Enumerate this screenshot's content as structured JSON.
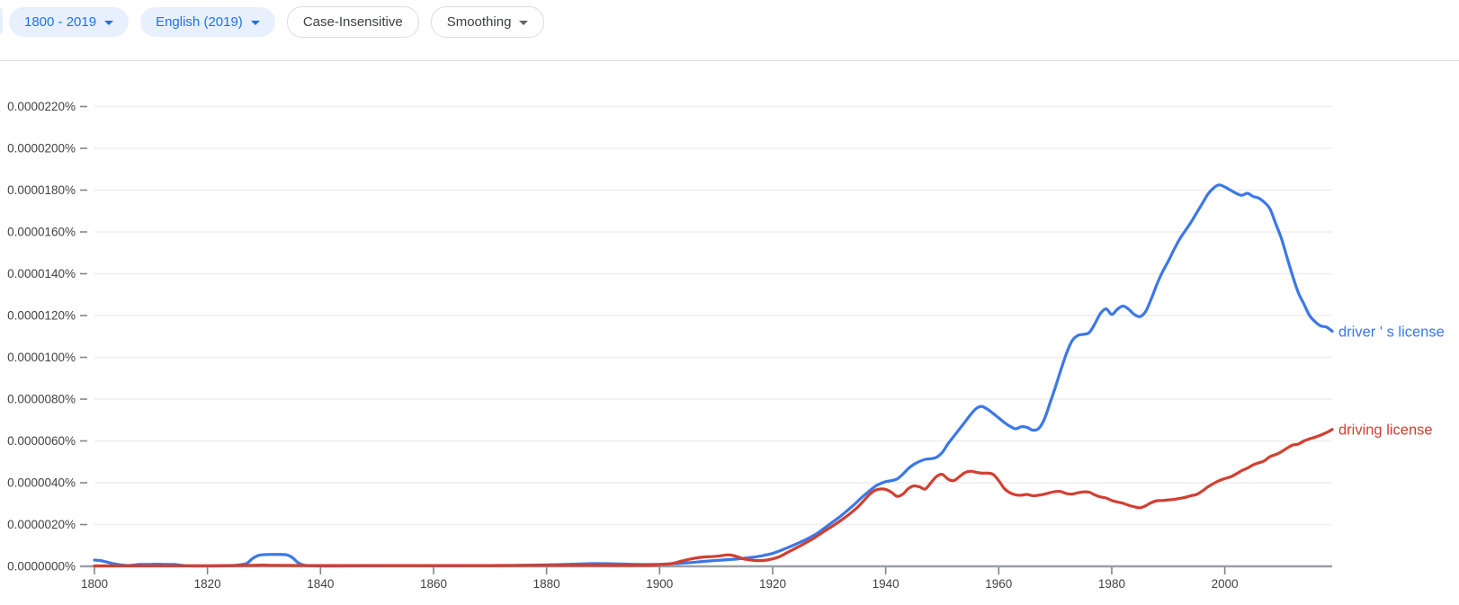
{
  "toolbar": {
    "chips": [
      {
        "label": "1800 - 2019",
        "style": "filled",
        "has_caret": true
      },
      {
        "label": "English (2019)",
        "style": "filled",
        "has_caret": true
      },
      {
        "label": "Case-Insensitive",
        "style": "outline",
        "has_caret": false
      },
      {
        "label": "Smoothing",
        "style": "outline",
        "has_caret": true
      }
    ]
  },
  "chart_data": {
    "type": "line",
    "title": "",
    "xlabel": "",
    "ylabel": "",
    "grid": "horizontal",
    "legend_position": "line-end-labels",
    "xlim": [
      1800,
      2019
    ],
    "x_ticks": [
      1800,
      1820,
      1840,
      1860,
      1880,
      1900,
      1920,
      1940,
      1960,
      1980,
      2000
    ],
    "y_unit": "percent",
    "points_unit": "1e-6 percent",
    "ylim_points_unit": [
      0,
      23.2
    ],
    "y_ticks": [
      {
        "value": 0,
        "label": "0.0000000%"
      },
      {
        "value": 2,
        "label": "0.0000020%"
      },
      {
        "value": 4,
        "label": "0.0000040%"
      },
      {
        "value": 6,
        "label": "0.0000060%"
      },
      {
        "value": 8,
        "label": "0.0000080%"
      },
      {
        "value": 10,
        "label": "0.0000100%"
      },
      {
        "value": 12,
        "label": "0.0000120%"
      },
      {
        "value": 14,
        "label": "0.0000140%"
      },
      {
        "value": 16,
        "label": "0.0000160%"
      },
      {
        "value": 18,
        "label": "0.0000180%"
      },
      {
        "value": 20,
        "label": "0.0000200%"
      },
      {
        "value": 22,
        "label": "0.0000220%"
      }
    ],
    "series": [
      {
        "name": "driver ' s license",
        "color": "#3b78e8",
        "points": [
          [
            1800,
            0.3
          ],
          [
            1801,
            0.28
          ],
          [
            1802,
            0.22
          ],
          [
            1803,
            0.15
          ],
          [
            1804,
            0.1
          ],
          [
            1805,
            0.06
          ],
          [
            1806,
            0.04
          ],
          [
            1807,
            0.06
          ],
          [
            1808,
            0.09
          ],
          [
            1810,
            0.1
          ],
          [
            1812,
            0.1
          ],
          [
            1814,
            0.09
          ],
          [
            1815,
            0.06
          ],
          [
            1816,
            0.03
          ],
          [
            1818,
            0.02
          ],
          [
            1820,
            0.02
          ],
          [
            1822,
            0.02
          ],
          [
            1824,
            0.03
          ],
          [
            1826,
            0.08
          ],
          [
            1827,
            0.15
          ],
          [
            1828,
            0.38
          ],
          [
            1829,
            0.52
          ],
          [
            1830,
            0.56
          ],
          [
            1832,
            0.57
          ],
          [
            1834,
            0.55
          ],
          [
            1835,
            0.42
          ],
          [
            1836,
            0.18
          ],
          [
            1837,
            0.06
          ],
          [
            1838,
            0.03
          ],
          [
            1840,
            0.02
          ],
          [
            1845,
            0.02
          ],
          [
            1850,
            0.03
          ],
          [
            1855,
            0.04
          ],
          [
            1860,
            0.03
          ],
          [
            1865,
            0.03
          ],
          [
            1870,
            0.04
          ],
          [
            1875,
            0.05
          ],
          [
            1880,
            0.07
          ],
          [
            1884,
            0.1
          ],
          [
            1888,
            0.13
          ],
          [
            1890,
            0.13
          ],
          [
            1893,
            0.11
          ],
          [
            1896,
            0.09
          ],
          [
            1899,
            0.09
          ],
          [
            1902,
            0.12
          ],
          [
            1905,
            0.17
          ],
          [
            1908,
            0.24
          ],
          [
            1911,
            0.3
          ],
          [
            1914,
            0.36
          ],
          [
            1916,
            0.42
          ],
          [
            1918,
            0.5
          ],
          [
            1920,
            0.62
          ],
          [
            1922,
            0.82
          ],
          [
            1924,
            1.05
          ],
          [
            1926,
            1.3
          ],
          [
            1928,
            1.6
          ],
          [
            1930,
            2.0
          ],
          [
            1932,
            2.4
          ],
          [
            1934,
            2.85
          ],
          [
            1936,
            3.35
          ],
          [
            1938,
            3.8
          ],
          [
            1939,
            3.95
          ],
          [
            1940,
            4.05
          ],
          [
            1941,
            4.1
          ],
          [
            1942,
            4.18
          ],
          [
            1943,
            4.4
          ],
          [
            1944,
            4.68
          ],
          [
            1945,
            4.88
          ],
          [
            1946,
            5.02
          ],
          [
            1947,
            5.12
          ],
          [
            1948,
            5.15
          ],
          [
            1949,
            5.22
          ],
          [
            1950,
            5.45
          ],
          [
            1951,
            5.85
          ],
          [
            1952,
            6.2
          ],
          [
            1953,
            6.55
          ],
          [
            1954,
            6.9
          ],
          [
            1955,
            7.25
          ],
          [
            1956,
            7.55
          ],
          [
            1957,
            7.65
          ],
          [
            1958,
            7.52
          ],
          [
            1959,
            7.32
          ],
          [
            1960,
            7.1
          ],
          [
            1961,
            6.88
          ],
          [
            1962,
            6.7
          ],
          [
            1963,
            6.58
          ],
          [
            1964,
            6.68
          ],
          [
            1965,
            6.65
          ],
          [
            1966,
            6.52
          ],
          [
            1967,
            6.58
          ],
          [
            1968,
            7.0
          ],
          [
            1969,
            7.75
          ],
          [
            1970,
            8.55
          ],
          [
            1971,
            9.4
          ],
          [
            1972,
            10.2
          ],
          [
            1973,
            10.8
          ],
          [
            1974,
            11.05
          ],
          [
            1975,
            11.1
          ],
          [
            1976,
            11.18
          ],
          [
            1977,
            11.6
          ],
          [
            1978,
            12.1
          ],
          [
            1979,
            12.32
          ],
          [
            1980,
            12.05
          ],
          [
            1981,
            12.3
          ],
          [
            1982,
            12.45
          ],
          [
            1983,
            12.3
          ],
          [
            1984,
            12.05
          ],
          [
            1985,
            11.95
          ],
          [
            1986,
            12.2
          ],
          [
            1987,
            12.8
          ],
          [
            1988,
            13.5
          ],
          [
            1989,
            14.1
          ],
          [
            1990,
            14.6
          ],
          [
            1991,
            15.15
          ],
          [
            1992,
            15.65
          ],
          [
            1993,
            16.05
          ],
          [
            1994,
            16.45
          ],
          [
            1995,
            16.9
          ],
          [
            1996,
            17.35
          ],
          [
            1997,
            17.8
          ],
          [
            1998,
            18.1
          ],
          [
            1999,
            18.25
          ],
          [
            2000,
            18.15
          ],
          [
            2001,
            18.0
          ],
          [
            2002,
            17.85
          ],
          [
            2003,
            17.75
          ],
          [
            2004,
            17.85
          ],
          [
            2005,
            17.7
          ],
          [
            2006,
            17.62
          ],
          [
            2007,
            17.42
          ],
          [
            2008,
            17.1
          ],
          [
            2009,
            16.4
          ],
          [
            2010,
            15.7
          ],
          [
            2011,
            14.8
          ],
          [
            2012,
            13.9
          ],
          [
            2013,
            13.1
          ],
          [
            2014,
            12.55
          ],
          [
            2015,
            12.0
          ],
          [
            2016,
            11.7
          ],
          [
            2017,
            11.5
          ],
          [
            2018,
            11.45
          ],
          [
            2019,
            11.25
          ]
        ]
      },
      {
        "name": "driving license",
        "color": "#d23f31",
        "points": [
          [
            1800,
            0.02
          ],
          [
            1810,
            0.03
          ],
          [
            1820,
            0.03
          ],
          [
            1828,
            0.05
          ],
          [
            1830,
            0.06
          ],
          [
            1832,
            0.05
          ],
          [
            1840,
            0.04
          ],
          [
            1850,
            0.04
          ],
          [
            1860,
            0.04
          ],
          [
            1870,
            0.04
          ],
          [
            1880,
            0.05
          ],
          [
            1890,
            0.05
          ],
          [
            1896,
            0.05
          ],
          [
            1900,
            0.08
          ],
          [
            1902,
            0.13
          ],
          [
            1904,
            0.26
          ],
          [
            1906,
            0.38
          ],
          [
            1908,
            0.45
          ],
          [
            1910,
            0.48
          ],
          [
            1912,
            0.55
          ],
          [
            1913,
            0.52
          ],
          [
            1914,
            0.44
          ],
          [
            1915,
            0.35
          ],
          [
            1917,
            0.28
          ],
          [
            1919,
            0.3
          ],
          [
            1921,
            0.44
          ],
          [
            1923,
            0.72
          ],
          [
            1925,
            1.0
          ],
          [
            1927,
            1.3
          ],
          [
            1929,
            1.65
          ],
          [
            1931,
            2.0
          ],
          [
            1933,
            2.38
          ],
          [
            1935,
            2.82
          ],
          [
            1937,
            3.4
          ],
          [
            1938,
            3.62
          ],
          [
            1939,
            3.7
          ],
          [
            1940,
            3.68
          ],
          [
            1941,
            3.55
          ],
          [
            1942,
            3.35
          ],
          [
            1943,
            3.45
          ],
          [
            1944,
            3.72
          ],
          [
            1945,
            3.85
          ],
          [
            1946,
            3.8
          ],
          [
            1947,
            3.7
          ],
          [
            1948,
            4.0
          ],
          [
            1949,
            4.3
          ],
          [
            1950,
            4.4
          ],
          [
            1951,
            4.18
          ],
          [
            1952,
            4.1
          ],
          [
            1953,
            4.28
          ],
          [
            1954,
            4.48
          ],
          [
            1955,
            4.55
          ],
          [
            1956,
            4.5
          ],
          [
            1957,
            4.46
          ],
          [
            1958,
            4.46
          ],
          [
            1959,
            4.4
          ],
          [
            1960,
            4.1
          ],
          [
            1961,
            3.72
          ],
          [
            1962,
            3.52
          ],
          [
            1963,
            3.42
          ],
          [
            1964,
            3.4
          ],
          [
            1965,
            3.44
          ],
          [
            1966,
            3.38
          ],
          [
            1967,
            3.4
          ],
          [
            1968,
            3.45
          ],
          [
            1969,
            3.52
          ],
          [
            1970,
            3.58
          ],
          [
            1971,
            3.58
          ],
          [
            1972,
            3.48
          ],
          [
            1973,
            3.46
          ],
          [
            1974,
            3.52
          ],
          [
            1975,
            3.56
          ],
          [
            1976,
            3.55
          ],
          [
            1977,
            3.42
          ],
          [
            1978,
            3.32
          ],
          [
            1979,
            3.27
          ],
          [
            1980,
            3.15
          ],
          [
            1981,
            3.08
          ],
          [
            1982,
            3.02
          ],
          [
            1983,
            2.92
          ],
          [
            1984,
            2.85
          ],
          [
            1985,
            2.8
          ],
          [
            1986,
            2.9
          ],
          [
            1987,
            3.05
          ],
          [
            1988,
            3.14
          ],
          [
            1989,
            3.15
          ],
          [
            1990,
            3.18
          ],
          [
            1991,
            3.2
          ],
          [
            1992,
            3.25
          ],
          [
            1993,
            3.3
          ],
          [
            1994,
            3.38
          ],
          [
            1995,
            3.44
          ],
          [
            1996,
            3.6
          ],
          [
            1997,
            3.8
          ],
          [
            1998,
            3.96
          ],
          [
            1999,
            4.1
          ],
          [
            2000,
            4.2
          ],
          [
            2001,
            4.28
          ],
          [
            2002,
            4.42
          ],
          [
            2003,
            4.58
          ],
          [
            2004,
            4.7
          ],
          [
            2005,
            4.85
          ],
          [
            2006,
            4.95
          ],
          [
            2007,
            5.05
          ],
          [
            2008,
            5.25
          ],
          [
            2009,
            5.35
          ],
          [
            2010,
            5.48
          ],
          [
            2011,
            5.65
          ],
          [
            2012,
            5.8
          ],
          [
            2013,
            5.85
          ],
          [
            2014,
            6.0
          ],
          [
            2015,
            6.1
          ],
          [
            2016,
            6.18
          ],
          [
            2017,
            6.28
          ],
          [
            2018,
            6.4
          ],
          [
            2019,
            6.55
          ]
        ]
      }
    ]
  },
  "colors": {
    "chip_filled_bg": "#e8f0fe",
    "chip_filled_text": "#1a73e8",
    "chip_outline_border": "#dadce0",
    "chip_outline_text": "#3c4043",
    "axis_line": "#9aa0a6",
    "tick_mark": "#80868b",
    "gridline": "#eeeeee",
    "axis_label_text": "#424242",
    "series_blue": "#3b78e8",
    "series_red": "#d23f31"
  }
}
